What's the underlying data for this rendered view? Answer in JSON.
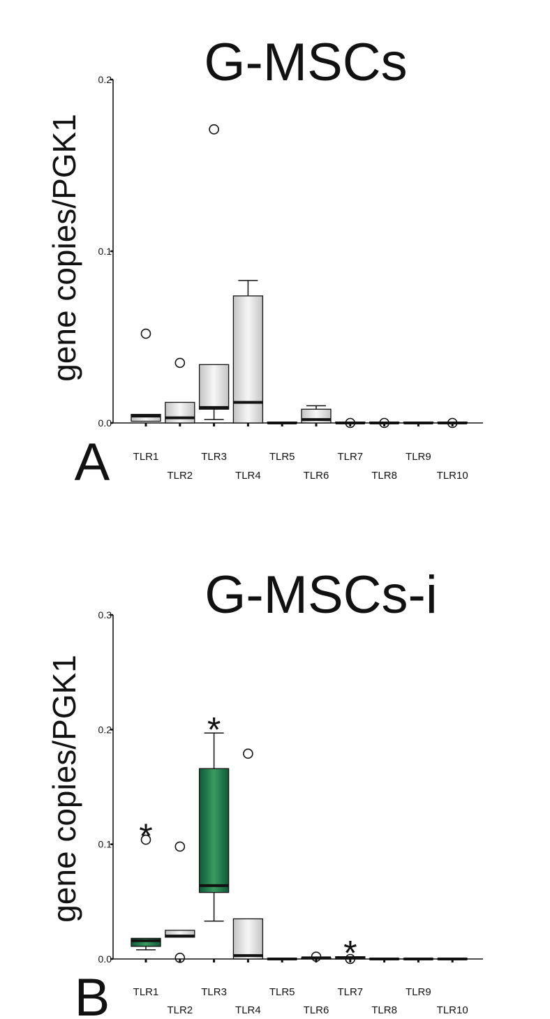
{
  "chart_data": [
    {
      "type": "box",
      "panel_letter": "A",
      "title": "G-MSCs",
      "ylabel": "gene copies/PGK1",
      "ylim": [
        0,
        0.2
      ],
      "yticks": [
        0,
        0.1,
        0.2
      ],
      "ytick_labels": [
        "0.0",
        "0.1",
        "0.2"
      ],
      "categories": [
        "TLR1",
        "TLR2",
        "TLR3",
        "TLR4",
        "TLR5",
        "TLR6",
        "TLR7",
        "TLR8",
        "TLR9",
        "TLR10"
      ],
      "boxes": [
        {
          "q1": 0.001,
          "median": 0.004,
          "q3": 0.005,
          "whisker_low": 0.001,
          "whisker_high": 0.005,
          "outliers": [
            0.052
          ],
          "color": "grey"
        },
        {
          "q1": 0.0,
          "median": 0.003,
          "q3": 0.012,
          "whisker_low": 0.0,
          "whisker_high": 0.012,
          "outliers": [
            0.035
          ],
          "color": "grey"
        },
        {
          "q1": 0.008,
          "median": 0.009,
          "q3": 0.034,
          "whisker_low": 0.002,
          "whisker_high": 0.034,
          "outliers": [
            0.171
          ],
          "color": "grey"
        },
        {
          "q1": 0.0,
          "median": 0.012,
          "q3": 0.074,
          "whisker_low": 0.0,
          "whisker_high": 0.083,
          "outliers": [],
          "color": "grey"
        },
        {
          "q1": 0.0,
          "median": 0.0,
          "q3": 0.0005,
          "whisker_low": 0.0,
          "whisker_high": 0.0005,
          "outliers": [],
          "color": "grey"
        },
        {
          "q1": 0.0,
          "median": 0.002,
          "q3": 0.008,
          "whisker_low": 0.0,
          "whisker_high": 0.01,
          "outliers": [],
          "color": "grey"
        },
        {
          "q1": 0.0,
          "median": 0.0,
          "q3": 0.0005,
          "whisker_low": 0.0,
          "whisker_high": 0.0005,
          "outliers": [
            0.0
          ],
          "color": "grey"
        },
        {
          "q1": 0.0,
          "median": 0.0,
          "q3": 0.0005,
          "whisker_low": 0.0,
          "whisker_high": 0.0005,
          "outliers": [
            0.0
          ],
          "color": "grey"
        },
        {
          "q1": 0.0,
          "median": 0.0,
          "q3": 0.0005,
          "whisker_low": 0.0,
          "whisker_high": 0.0005,
          "outliers": [],
          "color": "grey"
        },
        {
          "q1": 0.0,
          "median": 0.0,
          "q3": 0.0005,
          "whisker_low": 0.0,
          "whisker_high": 0.0005,
          "outliers": [
            0.0
          ],
          "color": "grey"
        }
      ],
      "significance": []
    },
    {
      "type": "box",
      "panel_letter": "B",
      "title": "G-MSCs-i",
      "ylabel": "gene copies/PGK1",
      "ylim": [
        0,
        0.3
      ],
      "yticks": [
        0,
        0.1,
        0.2,
        0.3
      ],
      "ytick_labels": [
        "0.0",
        "0.1",
        "0.2",
        "0.3"
      ],
      "categories": [
        "TLR1",
        "TLR2",
        "TLR3",
        "TLR4",
        "TLR5",
        "TLR6",
        "TLR7",
        "TLR8",
        "TLR9",
        "TLR10"
      ],
      "boxes": [
        {
          "q1": 0.011,
          "median": 0.016,
          "q3": 0.018,
          "whisker_low": 0.008,
          "whisker_high": 0.018,
          "outliers": [
            0.104
          ],
          "color": "green"
        },
        {
          "q1": 0.019,
          "median": 0.02,
          "q3": 0.025,
          "whisker_low": 0.019,
          "whisker_high": 0.025,
          "outliers": [
            0.098,
            0.001
          ],
          "color": "grey"
        },
        {
          "q1": 0.058,
          "median": 0.064,
          "q3": 0.166,
          "whisker_low": 0.033,
          "whisker_high": 0.197,
          "outliers": [],
          "color": "green"
        },
        {
          "q1": 0.0,
          "median": 0.003,
          "q3": 0.035,
          "whisker_low": 0.0,
          "whisker_high": 0.035,
          "outliers": [
            0.179
          ],
          "color": "grey"
        },
        {
          "q1": 0.0,
          "median": 0.0,
          "q3": 0.0005,
          "whisker_low": 0.0,
          "whisker_high": 0.0005,
          "outliers": [],
          "color": "grey"
        },
        {
          "q1": 0.0,
          "median": 0.001,
          "q3": 0.001,
          "whisker_low": 0.0,
          "whisker_high": 0.001,
          "outliers": [
            0.002
          ],
          "color": "grey"
        },
        {
          "q1": 0.0,
          "median": 0.001,
          "q3": 0.002,
          "whisker_low": 0.0,
          "whisker_high": 0.002,
          "outliers": [
            0.0
          ],
          "color": "green"
        },
        {
          "q1": 0.0,
          "median": 0.0,
          "q3": 0.0005,
          "whisker_low": 0.0,
          "whisker_high": 0.0005,
          "outliers": [],
          "color": "grey"
        },
        {
          "q1": 0.0,
          "median": 0.0,
          "q3": 0.0005,
          "whisker_low": 0.0,
          "whisker_high": 0.0005,
          "outliers": [],
          "color": "grey"
        },
        {
          "q1": 0.0,
          "median": 0.0,
          "q3": 0.0005,
          "whisker_low": 0.0,
          "whisker_high": 0.0005,
          "outliers": [],
          "color": "grey"
        }
      ],
      "significance": [
        {
          "category": "TLR1",
          "symbol": "*"
        },
        {
          "category": "TLR3",
          "symbol": "*"
        },
        {
          "category": "TLR7",
          "symbol": "*"
        }
      ]
    }
  ],
  "colors": {
    "grey_box_edge": "#c4c4c4",
    "grey_box_mid": "#f6f6f6",
    "green_box_edge": "#0e5a38",
    "green_box_mid": "#3a9a60",
    "line": "#111111"
  }
}
